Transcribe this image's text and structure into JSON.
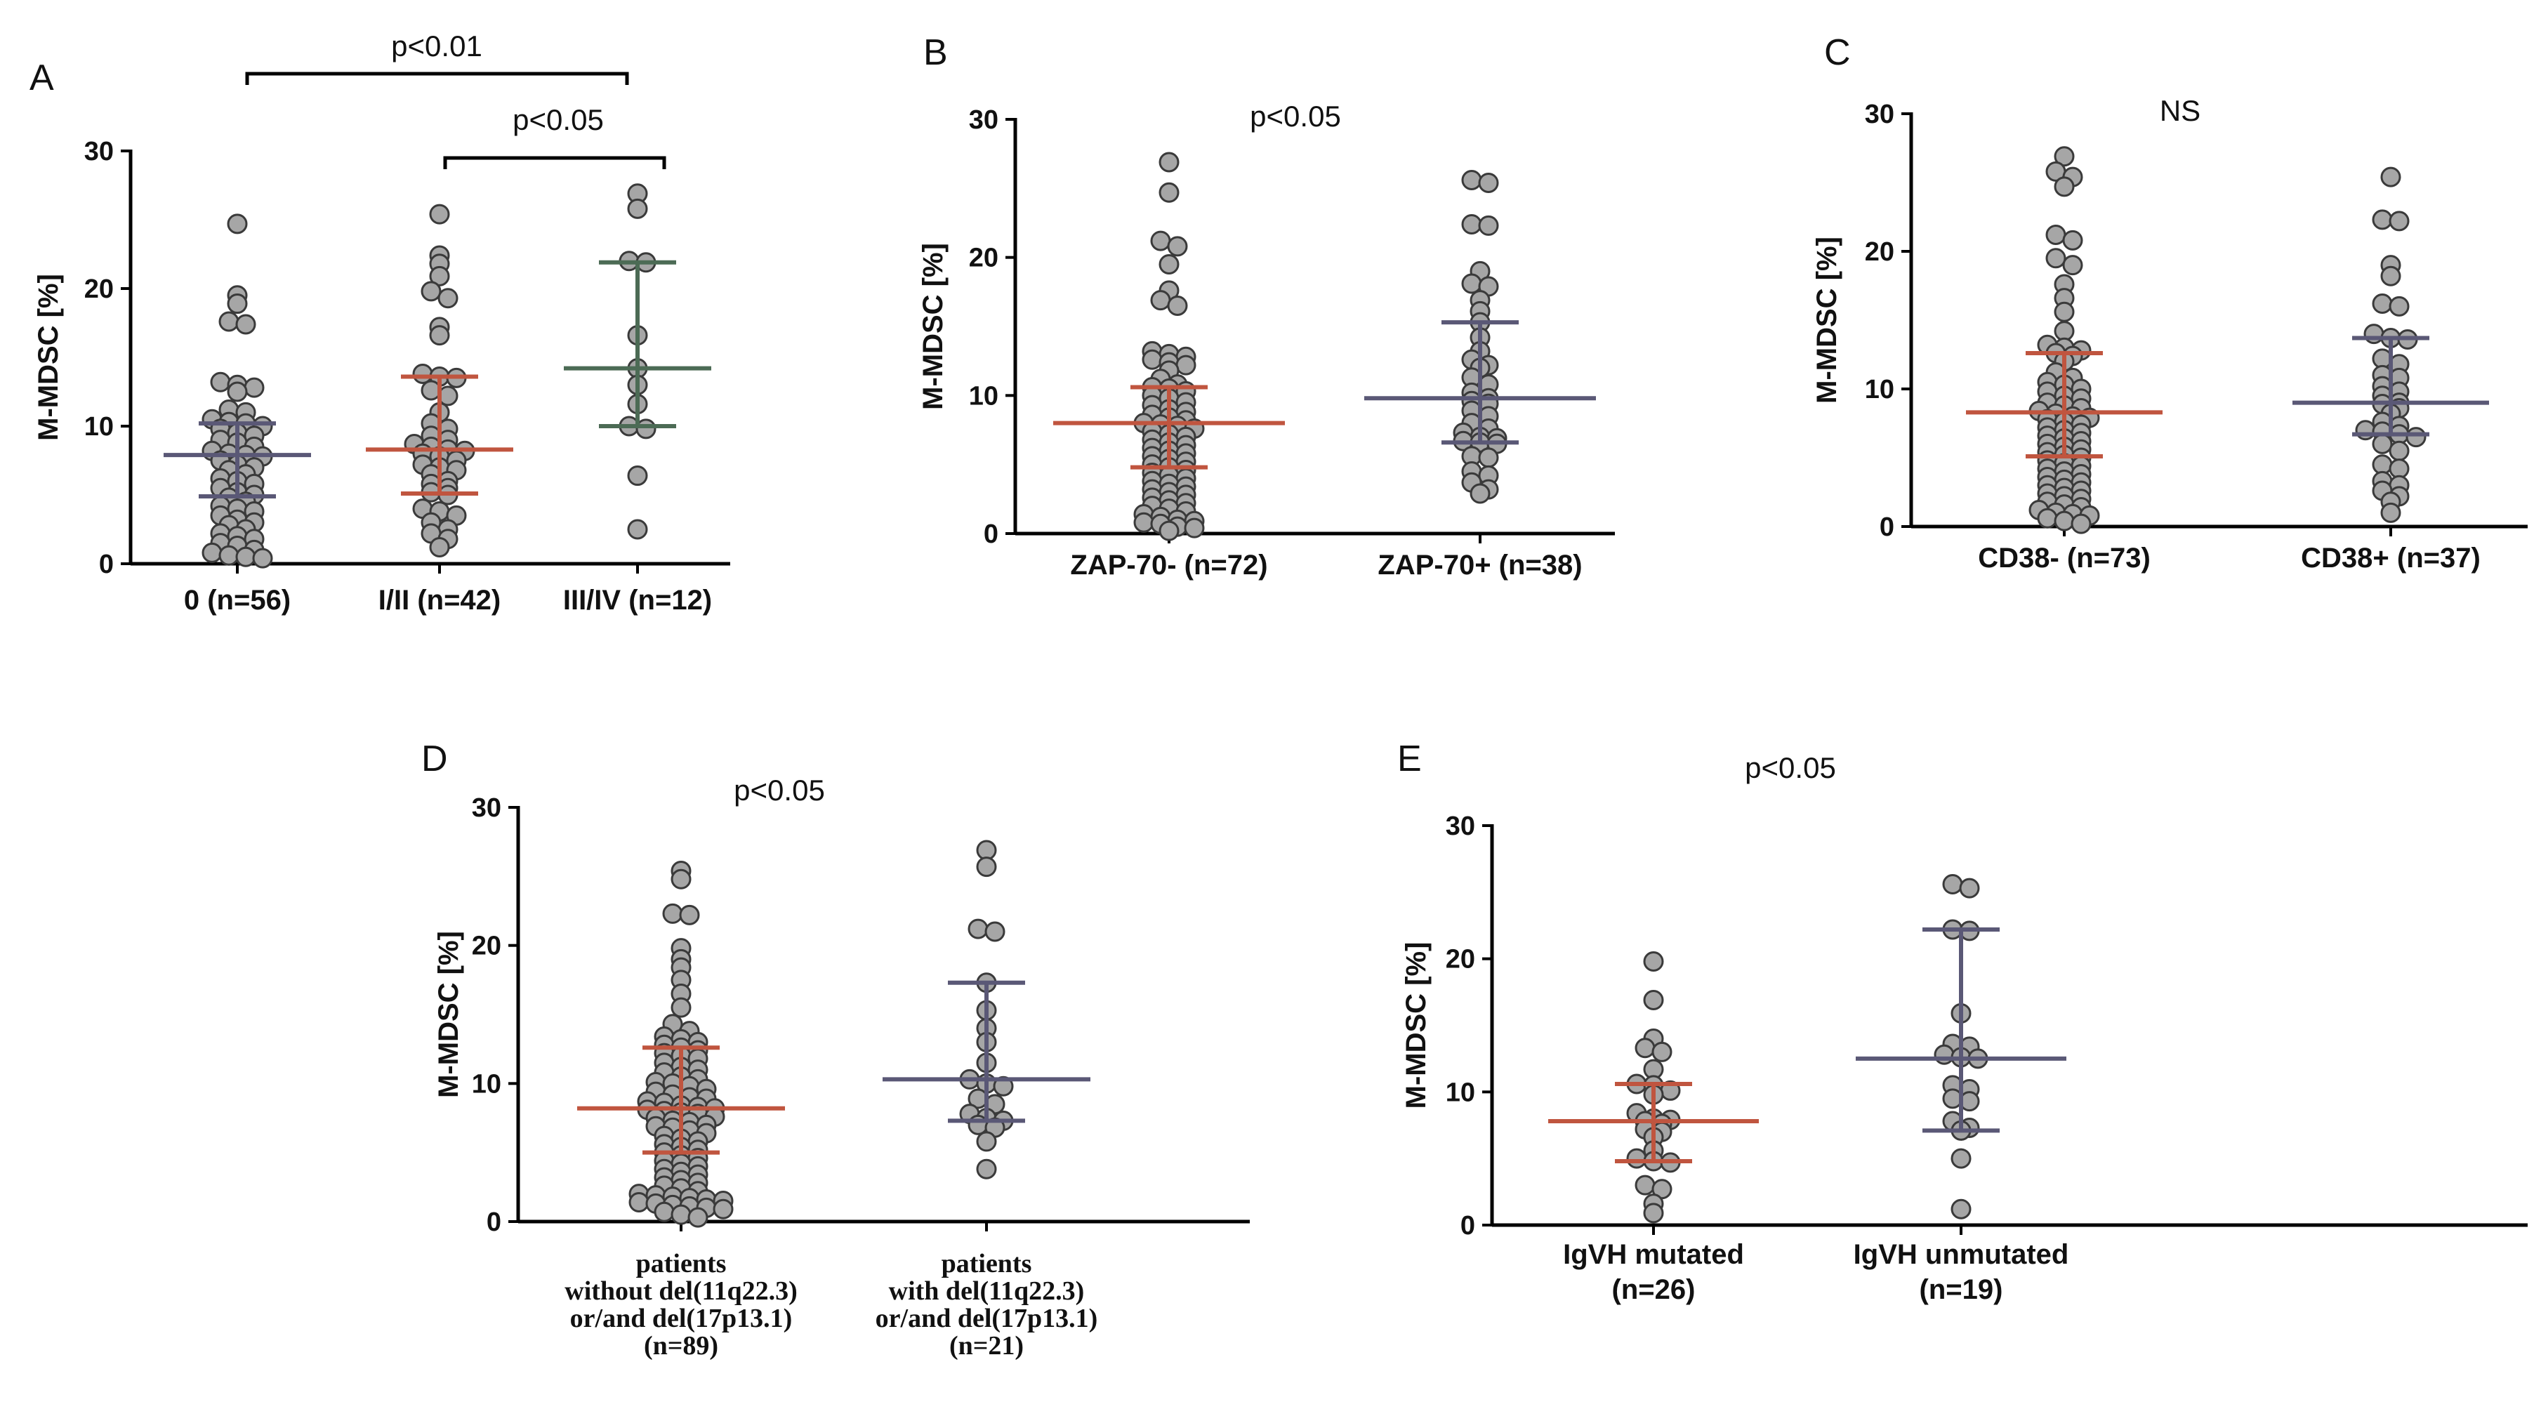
{
  "chart_data": [
    {
      "id": "A",
      "type": "scatter",
      "panel_label": "A",
      "ylabel": "M-MDSC [%]",
      "ylim": [
        0,
        30
      ],
      "yticks": [
        0,
        10,
        20,
        30
      ],
      "categories": [
        "0 (n=56)",
        "I/II (n=42)",
        "III/IV (n=12)"
      ],
      "series": [
        {
          "name": "0 (n=56)",
          "color": "#5a5876",
          "median": 7.9,
          "q1": 4.9,
          "q3": 10.2,
          "values": [
            24.7,
            19.5,
            18.9,
            17.6,
            17.4,
            13.2,
            13.0,
            12.8,
            12.5,
            11.2,
            11.0,
            10.5,
            10.3,
            10.2,
            10.0,
            9.8,
            9.5,
            9.3,
            9.0,
            8.8,
            8.5,
            8.2,
            8.0,
            7.9,
            7.8,
            7.5,
            7.2,
            7.0,
            6.8,
            6.5,
            6.2,
            6.0,
            5.8,
            5.5,
            5.2,
            5.0,
            4.8,
            4.5,
            4.2,
            4.0,
            3.8,
            3.5,
            3.2,
            3.0,
            2.8,
            2.5,
            2.2,
            2.0,
            1.8,
            1.5,
            1.3,
            1.0,
            0.8,
            0.6,
            0.5,
            0.4
          ]
        },
        {
          "name": "I/II (n=42)",
          "color": "#c0553f",
          "median": 8.3,
          "q1": 5.1,
          "q3": 13.6,
          "values": [
            25.4,
            22.4,
            21.8,
            20.9,
            19.8,
            19.3,
            17.2,
            16.6,
            13.8,
            13.6,
            13.5,
            12.6,
            12.2,
            11.0,
            10.2,
            9.8,
            9.3,
            9.0,
            8.7,
            8.5,
            8.3,
            8.2,
            8.0,
            7.8,
            7.5,
            7.2,
            7.0,
            6.8,
            6.5,
            6.0,
            5.8,
            5.5,
            5.2,
            5.0,
            4.0,
            3.8,
            3.5,
            3.0,
            2.5,
            2.2,
            1.8,
            1.2
          ]
        },
        {
          "name": "III/IV (n=12)",
          "color": "#4c6b55",
          "median": 14.2,
          "q1": 10.0,
          "q3": 21.9,
          "values": [
            26.9,
            25.8,
            22.0,
            21.9,
            16.6,
            14.2,
            13.0,
            11.6,
            10.0,
            9.8,
            6.4,
            2.5
          ]
        }
      ],
      "annotations": [
        {
          "text": "p<0.01",
          "from": 0,
          "to": 2
        },
        {
          "text": "p<0.05",
          "from": 1,
          "to": 2
        }
      ]
    },
    {
      "id": "B",
      "type": "scatter",
      "panel_label": "B",
      "ylabel": "M-MDSC [%]",
      "ylim": [
        0,
        30
      ],
      "yticks": [
        0,
        10,
        20,
        30
      ],
      "categories": [
        "ZAP-70- (n=72)",
        "ZAP-70+ (n=38)"
      ],
      "series": [
        {
          "name": "ZAP-70- (n=72)",
          "color": "#c0553f",
          "median": 8.0,
          "q1": 4.8,
          "q3": 10.6,
          "values": [
            26.9,
            24.7,
            21.2,
            20.8,
            19.5,
            17.6,
            16.9,
            16.5,
            13.2,
            13.0,
            12.8,
            12.6,
            12.4,
            12.2,
            11.8,
            11.2,
            10.8,
            10.6,
            10.5,
            10.3,
            10.0,
            9.8,
            9.5,
            9.3,
            9.0,
            8.8,
            8.6,
            8.4,
            8.2,
            8.0,
            7.9,
            7.8,
            7.6,
            7.4,
            7.2,
            7.0,
            6.8,
            6.6,
            6.4,
            6.2,
            6.0,
            5.8,
            5.6,
            5.4,
            5.2,
            5.0,
            4.8,
            4.6,
            4.4,
            4.2,
            4.0,
            3.8,
            3.6,
            3.4,
            3.2,
            3.0,
            2.8,
            2.6,
            2.4,
            2.2,
            2.0,
            1.8,
            1.6,
            1.4,
            1.2,
            1.0,
            0.9,
            0.8,
            0.7,
            0.5,
            0.4,
            0.2
          ]
        },
        {
          "name": "ZAP-70+ (n=38)",
          "color": "#5a5876",
          "median": 9.8,
          "q1": 6.6,
          "q3": 15.3,
          "values": [
            25.6,
            25.4,
            22.4,
            22.3,
            19.0,
            18.1,
            17.9,
            16.9,
            16.1,
            15.3,
            14.2,
            13.2,
            12.6,
            12.2,
            12.0,
            11.3,
            10.8,
            10.2,
            9.8,
            9.6,
            9.4,
            8.9,
            8.5,
            8.0,
            7.6,
            7.3,
            7.0,
            6.9,
            6.7,
            6.6,
            6.5,
            5.6,
            5.5,
            4.5,
            4.2,
            3.7,
            3.2,
            2.9
          ]
        }
      ],
      "annotations": [
        {
          "text": "p<0.05"
        }
      ]
    },
    {
      "id": "C",
      "type": "scatter",
      "panel_label": "C",
      "ylabel": "M-MDSC [%]",
      "ylim": [
        0,
        30
      ],
      "yticks": [
        0,
        10,
        20,
        30
      ],
      "categories": [
        "CD38- (n=73)",
        "CD38+ (n=37)"
      ],
      "series": [
        {
          "name": "CD38- (n=73)",
          "color": "#c0553f",
          "median": 8.3,
          "q1": 5.1,
          "q3": 12.6,
          "values": [
            26.9,
            25.8,
            25.4,
            24.7,
            21.2,
            20.8,
            19.5,
            19.0,
            17.6,
            16.6,
            15.6,
            14.2,
            13.2,
            13.0,
            12.8,
            12.6,
            12.4,
            12.0,
            11.2,
            10.8,
            10.5,
            10.3,
            10.0,
            9.8,
            9.5,
            9.3,
            9.0,
            8.8,
            8.6,
            8.4,
            8.2,
            8.0,
            7.9,
            7.8,
            7.6,
            7.4,
            7.2,
            7.0,
            6.8,
            6.6,
            6.4,
            6.2,
            6.0,
            5.8,
            5.6,
            5.4,
            5.2,
            5.0,
            4.8,
            4.6,
            4.4,
            4.2,
            4.0,
            3.8,
            3.6,
            3.4,
            3.2,
            3.0,
            2.8,
            2.6,
            2.4,
            2.2,
            2.0,
            1.8,
            1.6,
            1.4,
            1.2,
            1.0,
            0.9,
            0.8,
            0.6,
            0.4,
            0.2
          ]
        },
        {
          "name": "CD38+ (n=37)",
          "color": "#5a5876",
          "median": 9.0,
          "q1": 6.7,
          "q3": 13.7,
          "values": [
            25.4,
            22.3,
            22.2,
            19.0,
            18.2,
            16.2,
            16.0,
            14.0,
            13.7,
            13.6,
            12.2,
            11.8,
            11.0,
            10.8,
            10.2,
            9.8,
            9.5,
            9.0,
            8.9,
            8.6,
            8.2,
            7.6,
            7.3,
            7.0,
            6.9,
            6.7,
            6.5,
            6.0,
            5.5,
            4.5,
            4.2,
            3.3,
            3.0,
            2.6,
            2.2,
            1.8,
            1.0
          ]
        }
      ],
      "annotations": [
        {
          "text": "NS"
        }
      ]
    },
    {
      "id": "D",
      "type": "scatter",
      "panel_label": "D",
      "ylabel": "M-MDSC [%]",
      "ylim": [
        0,
        30
      ],
      "yticks": [
        0,
        10,
        20,
        30
      ],
      "categories": [
        [
          "patients",
          "without del(11q22.3)",
          "or/and del(17p13.1)",
          "(n=89)"
        ],
        [
          "patients",
          "with del(11q22.3)",
          "or/and del(17p13.1)",
          "(n=21)"
        ]
      ],
      "series": [
        {
          "name": "patients without del(11q22.3) or/and del(17p13.1) (n=89)",
          "color": "#c0553f",
          "median": 8.2,
          "q1": 5.0,
          "q3": 12.6,
          "values": [
            25.4,
            24.8,
            22.3,
            22.2,
            19.8,
            19.0,
            18.4,
            17.5,
            16.5,
            15.5,
            14.3,
            13.8,
            13.4,
            13.2,
            13.0,
            12.8,
            12.6,
            12.4,
            12.2,
            12.0,
            11.8,
            11.5,
            11.2,
            11.0,
            10.8,
            10.5,
            10.3,
            10.1,
            10.0,
            9.8,
            9.6,
            9.4,
            9.2,
            9.0,
            8.9,
            8.7,
            8.6,
            8.4,
            8.3,
            8.2,
            8.1,
            8.0,
            7.9,
            7.8,
            7.6,
            7.5,
            7.3,
            7.2,
            7.0,
            6.9,
            6.8,
            6.6,
            6.4,
            6.2,
            6.0,
            5.8,
            5.6,
            5.4,
            5.2,
            5.0,
            4.8,
            4.6,
            4.4,
            4.2,
            4.0,
            3.8,
            3.6,
            3.4,
            3.2,
            3.0,
            2.8,
            2.6,
            2.4,
            2.2,
            2.0,
            1.9,
            1.8,
            1.7,
            1.6,
            1.5,
            1.4,
            1.3,
            1.2,
            1.1,
            1.0,
            0.9,
            0.7,
            0.5,
            0.3
          ]
        },
        {
          "name": "patients with del(11q22.3) or/and del(17p13.1) (n=21)",
          "color": "#5a5876",
          "median": 10.3,
          "q1": 7.3,
          "q3": 17.3,
          "values": [
            26.9,
            25.7,
            21.2,
            21.0,
            17.3,
            15.3,
            14.0,
            13.0,
            11.5,
            10.3,
            10.0,
            9.8,
            8.9,
            8.5,
            7.8,
            7.5,
            7.3,
            7.0,
            6.8,
            5.8,
            3.8
          ]
        }
      ],
      "annotations": [
        {
          "text": "p<0.05"
        }
      ]
    },
    {
      "id": "E",
      "type": "scatter",
      "panel_label": "E",
      "ylabel": "M-MDSC [%]",
      "ylim": [
        0,
        30
      ],
      "yticks": [
        0,
        10,
        20,
        30
      ],
      "categories": [
        [
          "IgVH mutated",
          "(n=26)"
        ],
        [
          "IgVH unmutated",
          "(n=19)"
        ]
      ],
      "series": [
        {
          "name": "IgVH mutated (n=26)",
          "color": "#c0553f",
          "median": 7.8,
          "q1": 4.8,
          "q3": 10.6,
          "values": [
            19.8,
            16.9,
            14.0,
            13.3,
            13.0,
            11.7,
            10.6,
            10.5,
            10.1,
            9.8,
            8.4,
            8.0,
            7.9,
            7.8,
            7.6,
            7.2,
            7.0,
            6.6,
            5.6,
            5.0,
            4.8,
            4.7,
            3.0,
            2.7,
            1.6,
            0.9
          ]
        },
        {
          "name": "IgVH unmutated (n=19)",
          "color": "#5a5876",
          "median": 12.5,
          "q1": 7.1,
          "q3": 22.2,
          "values": [
            25.6,
            25.3,
            22.2,
            22.1,
            15.9,
            13.6,
            13.4,
            12.8,
            12.6,
            12.5,
            10.5,
            10.2,
            9.5,
            9.3,
            7.8,
            7.3,
            7.1,
            5.0,
            1.2
          ]
        }
      ],
      "annotations": [
        {
          "text": "p<0.05"
        }
      ]
    }
  ]
}
